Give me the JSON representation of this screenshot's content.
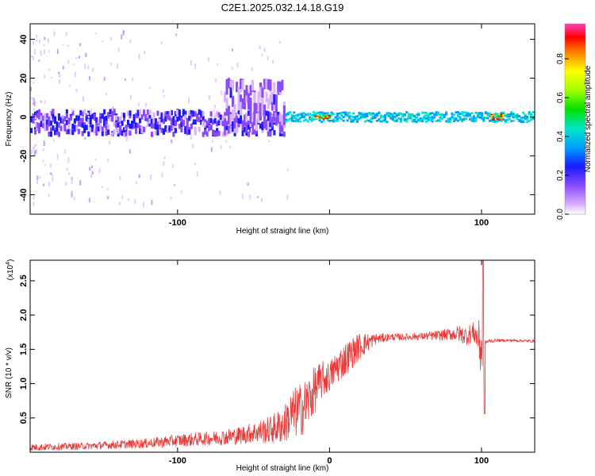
{
  "title": "C2E1.2025.032.14.18.G19",
  "colors": {
    "snr_line": "#e83a3a",
    "frame": "#000000",
    "colormap": [
      "#ffffff",
      "#d9b3ff",
      "#8a4bff",
      "#1a1aff",
      "#00a0ff",
      "#00e5c8",
      "#00e000",
      "#a0ff00",
      "#ffff00",
      "#ff8000",
      "#ff0000",
      "#ff40c0"
    ]
  },
  "chart_data": [
    {
      "type": "heatmap",
      "name": "spectrogram",
      "xlabel": "Height of straight line (km)",
      "ylabel": "Frequency (Hz)",
      "xlim": [
        -197,
        135
      ],
      "ylim": [
        -50,
        48
      ],
      "xticks": [
        -100,
        0,
        100
      ],
      "xtick_labels": [
        "-100",
        "",
        "100"
      ],
      "yticks": [
        -40,
        -20,
        0,
        20,
        40
      ],
      "ytick_labels": [
        "-40",
        "-20",
        "0",
        "20",
        "40"
      ],
      "z_range": [
        0,
        1
      ],
      "ridge": [
        {
          "x_range": [
            -197,
            -30
          ],
          "frequency": -3,
          "amplitude": 0.25,
          "spread_hz": 6
        },
        {
          "x_range": [
            -70,
            -30
          ],
          "frequency": 6,
          "amplitude": 0.2,
          "spread_hz": 12
        },
        {
          "x_range": [
            -30,
            135
          ],
          "frequency": 0,
          "amplitude": 0.45,
          "spread_hz": 2.5
        },
        {
          "x_range": [
            -10,
            0
          ],
          "frequency": 0,
          "amplitude": 0.95,
          "spread_hz": 1
        },
        {
          "x_range": [
            105,
            115
          ],
          "frequency": 0,
          "amplitude": 0.8,
          "spread_hz": 1.5
        }
      ],
      "colorbar": {
        "label": "Normalized spectral amplitude",
        "ticks": [
          0,
          0.2,
          0.4,
          0.6,
          0.8
        ],
        "tick_labels": [
          "0.0",
          "0.2",
          "0.4",
          "0.6",
          "0.8"
        ],
        "range": [
          0,
          0.98
        ]
      }
    },
    {
      "type": "line",
      "name": "snr",
      "xlabel": "Height of straight line (km)",
      "ylabel": "SNR (10 * v/v)",
      "scale_label": "(x10",
      "scale_exponent": "4",
      "xlim": [
        -197,
        135
      ],
      "ylim": [
        0,
        28000
      ],
      "xticks": [
        -100,
        0,
        100
      ],
      "xtick_labels": [
        "-100",
        "0",
        "100"
      ],
      "yticks": [
        5000,
        10000,
        15000,
        20000,
        25000
      ],
      "ytick_labels": [
        "0.5",
        "1.0",
        "1.5",
        "2.0",
        "2.5"
      ],
      "series": [
        {
          "x": [
            -197,
            -180,
            -160,
            -140,
            -120,
            -100,
            -80,
            -60,
            -50,
            -40,
            -30,
            -25,
            -20,
            -15,
            -10,
            -5,
            0,
            5,
            10,
            20,
            30,
            40,
            50,
            60,
            70,
            80,
            85,
            90,
            95,
            98,
            100,
            102,
            105,
            110,
            120,
            135
          ],
          "values": [
            700,
            800,
            900,
            1100,
            1300,
            1700,
            2000,
            2400,
            2900,
            3200,
            4000,
            5500,
            6000,
            7000,
            9000,
            10500,
            11000,
            12500,
            13500,
            15500,
            16500,
            16800,
            16800,
            16900,
            17000,
            17200,
            17300,
            17000,
            17500,
            16500,
            15000,
            16000,
            16200,
            16300,
            16300,
            16200
          ],
          "noise": [
            500,
            500,
            500,
            600,
            700,
            900,
            1000,
            1300,
            1500,
            2000,
            2800,
            3500,
            4000,
            4000,
            3500,
            2800,
            2200,
            2500,
            2500,
            2000,
            800,
            500,
            500,
            500,
            700,
            900,
            1200,
            1400,
            1500,
            2500,
            6000,
            300,
            300,
            200,
            200,
            200
          ]
        }
      ],
      "peak": {
        "x": 101,
        "value": 29000
      },
      "dip": {
        "x": 102,
        "value": 5600
      }
    }
  ]
}
